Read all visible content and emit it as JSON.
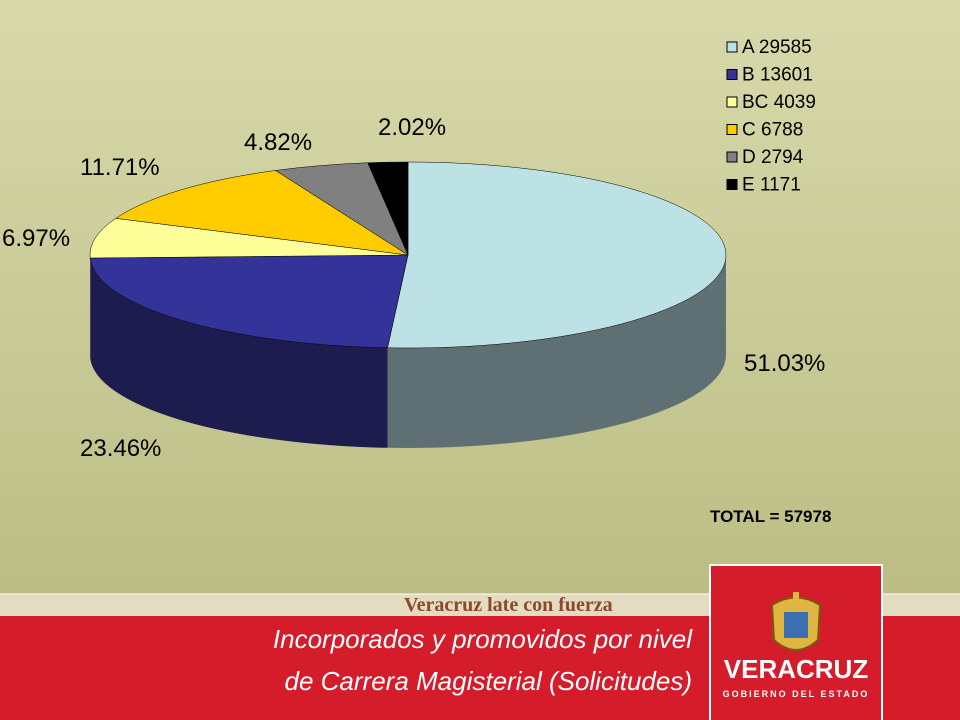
{
  "chart_data": {
    "type": "pie3d",
    "categories": [
      "A 29585",
      "B 13601",
      "BC 4039",
      "C 6788",
      "D 2794",
      "E 1171"
    ],
    "values": [
      51.03,
      23.46,
      6.97,
      11.71,
      4.82,
      2.02
    ],
    "value_labels": [
      "51.03%",
      "23.46%",
      "6.97%",
      "11.71%",
      "4.82%",
      "2.02%"
    ],
    "colors": [
      "#bde2e6",
      "#333399",
      "#ffff99",
      "#ffcc00",
      "#808080",
      "#000000"
    ],
    "side_colors": [
      "#5f7074",
      "#1c1c4f",
      "#9a9a5c",
      "#9a7a00",
      "#4d4d4d",
      "#000000"
    ],
    "legend": "upper right",
    "annotation": "TOTAL = 57978"
  },
  "footer": {
    "slogan": "Veracruz late con fuerza",
    "title_lines": [
      "Incorporados y promovidos por nivel",
      "de Carrera Magisterial (Solicitudes)"
    ],
    "logo_name": "VERACRUZ",
    "logo_subtitle": "GOBIERNO DEL ESTADO"
  }
}
